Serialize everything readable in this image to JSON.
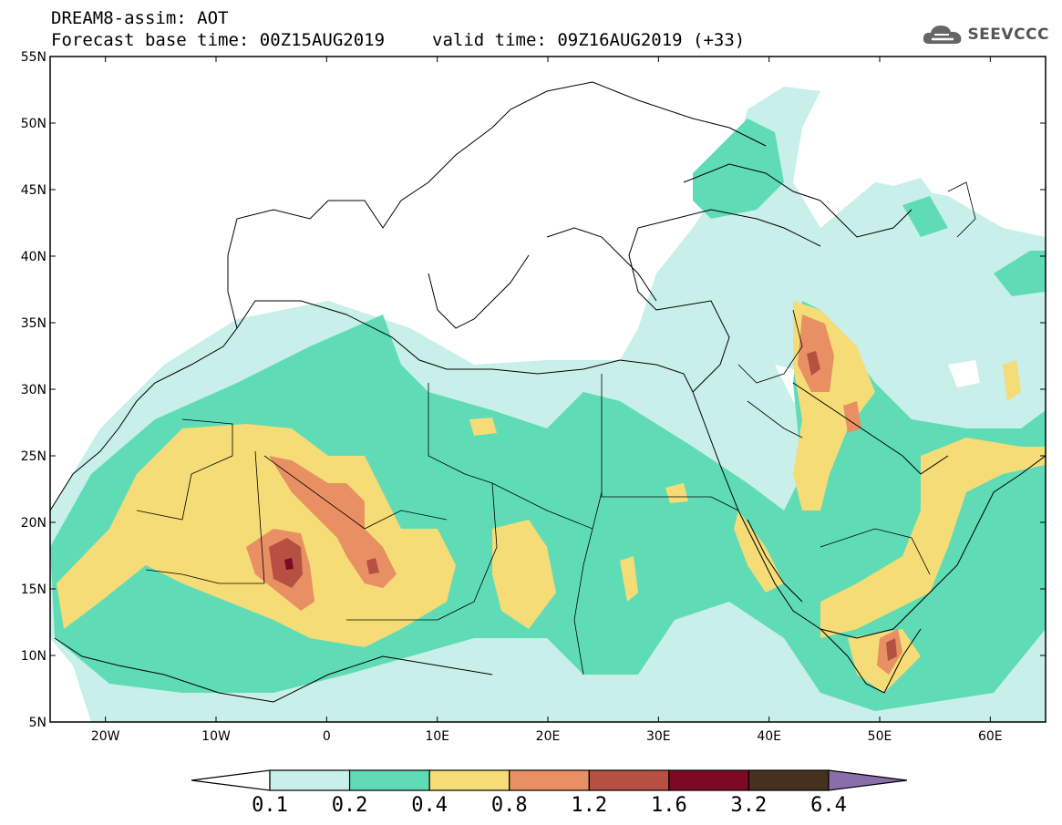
{
  "title": {
    "line1": "DREAM8-assim: AOT",
    "base_time": "Forecast base time: 00Z15AUG2019",
    "valid_time": "valid time: 09Z16AUG2019 (+33)"
  },
  "logo": {
    "text": "SEEVCCC",
    "icon": "cloud-logo-icon"
  },
  "map": {
    "lat_labels": [
      "55N",
      "50N",
      "45N",
      "40N",
      "35N",
      "30N",
      "25N",
      "20N",
      "15N",
      "10N",
      "5N"
    ],
    "lon_labels": [
      "20W",
      "10W",
      "0",
      "10E",
      "20E",
      "30E",
      "40E",
      "50E",
      "60E"
    ],
    "extent": {
      "lon": [
        -25,
        65
      ],
      "lat": [
        5,
        55
      ]
    }
  },
  "colorbar": {
    "labels": [
      "0.1",
      "0.2",
      "0.4",
      "0.8",
      "1.2",
      "1.6",
      "3.2",
      "6.4"
    ],
    "colors": [
      "#ffffff",
      "#c8efea",
      "#5fdcb6",
      "#f5dc76",
      "#e88f64",
      "#b55042",
      "#7d0a22",
      "#46301e",
      "#8a6eaa"
    ]
  },
  "colors": {
    "lvl1": "#c8efea",
    "lvl2": "#5fdcb6",
    "lvl3": "#f5dc76",
    "lvl4": "#e88f64",
    "lvl5": "#b55042",
    "lvl6": "#7d0a22"
  }
}
